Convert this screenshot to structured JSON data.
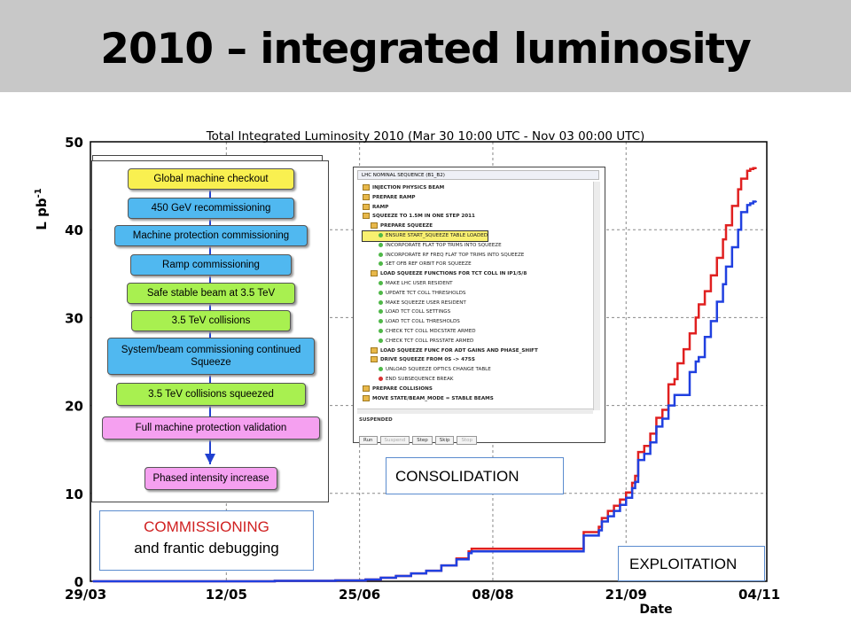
{
  "slide_title": "2010 – integrated luminosity",
  "chart_data": {
    "type": "line",
    "title": "Total Integrated Luminosity 2010 (Mar 30 10:00 UTC - Nov 03 00:00 UTC)",
    "xlabel": "Date",
    "ylabel": "L pb",
    "ylabel_sup": "-1",
    "ylim": [
      0,
      50
    ],
    "yticks": [
      0,
      10,
      20,
      30,
      40,
      50
    ],
    "xticks": [
      "29/03",
      "12/05",
      "25/06",
      "08/08",
      "21/09",
      "04/11"
    ],
    "xlim_days": [
      0,
      221
    ],
    "grid": true,
    "series": [
      {
        "color": "#e02020",
        "x_days": [
          0,
          40,
          60,
          80,
          90,
          95,
          100,
          105,
          110,
          115,
          120,
          124,
          125,
          130,
          132,
          135,
          140,
          145,
          155,
          161,
          162,
          167,
          168,
          170,
          172,
          174,
          176,
          178,
          179,
          180,
          182,
          184,
          186,
          188,
          190,
          192,
          193,
          195,
          197,
          199,
          200,
          202,
          204,
          206,
          208,
          209,
          211,
          213,
          214,
          216,
          217,
          218,
          219
        ],
        "y": [
          0,
          0,
          0.05,
          0.1,
          0.2,
          0.4,
          0.6,
          0.9,
          1.2,
          1.8,
          2.6,
          3.4,
          3.7,
          3.7,
          3.7,
          3.7,
          3.7,
          3.7,
          3.7,
          3.7,
          5.6,
          6.2,
          7.2,
          8.0,
          8.6,
          9.3,
          10.1,
          11.2,
          12.0,
          14.7,
          15.4,
          16.8,
          18.6,
          19.5,
          22.4,
          23.0,
          24.8,
          26.4,
          28.2,
          30.0,
          31.5,
          33.0,
          34.8,
          36.8,
          38.9,
          40.5,
          42.7,
          44.6,
          45.8,
          46.7,
          46.9,
          47.0,
          47.0
        ]
      },
      {
        "color": "#2040e0",
        "x_days": [
          0,
          40,
          60,
          80,
          90,
          95,
          100,
          105,
          110,
          115,
          120,
          124,
          125,
          130,
          132,
          135,
          140,
          145,
          155,
          161,
          162,
          167,
          168,
          170,
          172,
          174,
          176,
          178,
          179,
          180,
          182,
          184,
          186,
          188,
          190,
          192,
          193,
          195,
          197,
          199,
          200,
          202,
          204,
          206,
          208,
          209,
          211,
          213,
          214,
          216,
          217,
          218,
          219
        ],
        "y": [
          0,
          0,
          0.05,
          0.1,
          0.2,
          0.4,
          0.6,
          0.9,
          1.2,
          1.8,
          2.5,
          3.2,
          3.4,
          3.4,
          3.4,
          3.4,
          3.4,
          3.4,
          3.4,
          3.4,
          5.2,
          5.8,
          6.8,
          7.4,
          8.0,
          8.7,
          9.5,
          10.6,
          11.3,
          13.8,
          14.5,
          15.8,
          17.6,
          18.5,
          20.0,
          21.2,
          21.2,
          21.2,
          23.8,
          25.0,
          25.5,
          27.8,
          29.6,
          31.8,
          33.8,
          35.8,
          38.0,
          40.0,
          42.0,
          42.8,
          43.0,
          43.2,
          43.2
        ]
      }
    ]
  },
  "flowchart": {
    "steps": [
      {
        "label": "Global machine checkout",
        "color": "#f9f050"
      },
      {
        "label": "450 GeV recommissioning",
        "color": "#50b8f0"
      },
      {
        "label": "Machine protection commissioning",
        "color": "#50b8f0"
      },
      {
        "label": "Ramp commissioning",
        "color": "#50b8f0"
      },
      {
        "label": "Safe stable beam at 3.5 TeV",
        "color": "#a8f050"
      },
      {
        "label": "3.5 TeV collisions",
        "color": "#a8f050"
      },
      {
        "label": "System/beam commissioning continued Squeeze",
        "color": "#50b8f0"
      },
      {
        "label": "3.5 TeV collisions squeezed",
        "color": "#a8f050"
      },
      {
        "label": "Full machine protection validation",
        "color": "#f5a0f0"
      },
      {
        "label": "Phased intensity increase",
        "color": "#f5a0f0"
      }
    ]
  },
  "sequencer": {
    "title": "LHC NOMINAL SEQUENCE (B1_B2)",
    "rows": [
      {
        "label": "INJECTION PHYSICS BEAM",
        "type": "folder",
        "indent": 0
      },
      {
        "label": "PREPARE RAMP",
        "type": "folder",
        "indent": 0
      },
      {
        "label": "RAMP",
        "type": "folder",
        "indent": 0
      },
      {
        "label": "SQUEEZE TO 1.5M IN ONE STEP 2011",
        "type": "folder",
        "indent": 0
      },
      {
        "label": "PREPARE SQUEEZE",
        "type": "folder",
        "indent": 1
      },
      {
        "label": "ENSURE START_SQUEEZE TABLE LOADED",
        "type": "dot",
        "indent": 2
      },
      {
        "label": "INCORPORATE FLAT TOP TRIMS INTO SQUEEZE",
        "type": "dot",
        "indent": 2
      },
      {
        "label": "INCORPORATE RF FREQ FLAT TOP TRIMS INTO SQUEEZE",
        "type": "dot",
        "indent": 2
      },
      {
        "label": "SET OFB REF ORBIT FOR SQUEEZE",
        "type": "dot",
        "indent": 2
      },
      {
        "label": "LOAD SQUEEZE FUNCTIONS FOR TCT COLL IN IP1/5/8",
        "type": "folder",
        "indent": 1
      },
      {
        "label": "MAKE LHC USER RESIDENT",
        "type": "dot",
        "indent": 2
      },
      {
        "label": "UPDATE TCT COLL THRESHOLDS",
        "type": "dot",
        "indent": 2
      },
      {
        "label": "MAKE SQUEEZE USER RESIDENT",
        "type": "dot",
        "indent": 2
      },
      {
        "label": "LOAD TCT COLL SETTINGS",
        "type": "dot",
        "indent": 2
      },
      {
        "label": "LOAD TCT COLL THRESHOLDS",
        "type": "dot",
        "indent": 2
      },
      {
        "label": "CHECK TCT COLL MDCSTATE ARMED",
        "type": "dot",
        "indent": 2
      },
      {
        "label": "CHECK TCT COLL PRSSTATE ARMED",
        "type": "dot",
        "indent": 2
      },
      {
        "label": "LOAD SQUEEZE FUNC FOR ADT GAINS AND PHASE_SHIFT",
        "type": "folder",
        "indent": 1
      },
      {
        "label": "DRIVE SQUEEZE FROM 0S -> 475S",
        "type": "folder",
        "indent": 1
      },
      {
        "label": "UNLOAD SQUEEZE OPTICS CHANGE TABLE",
        "type": "dot",
        "indent": 2
      },
      {
        "label": "END SUBSEQUENCE BREAK",
        "type": "dot-red",
        "indent": 2
      },
      {
        "label": "PREPARE COLLISIONS",
        "type": "folder",
        "indent": 0
      },
      {
        "label": "MOVE STATE/BEAM_MODE = STABLE BEAMS",
        "type": "folder",
        "indent": 0
      }
    ],
    "status": "SUSPENDED",
    "buttons": [
      "Run",
      "Suspend",
      "Step",
      "Skip",
      "Stop"
    ]
  },
  "labels": {
    "commissioning": "COMMISSIONING",
    "commissioning_sub": "and frantic debugging",
    "consolidation": "CONSOLIDATION",
    "exploitation": "EXPLOITATION"
  }
}
